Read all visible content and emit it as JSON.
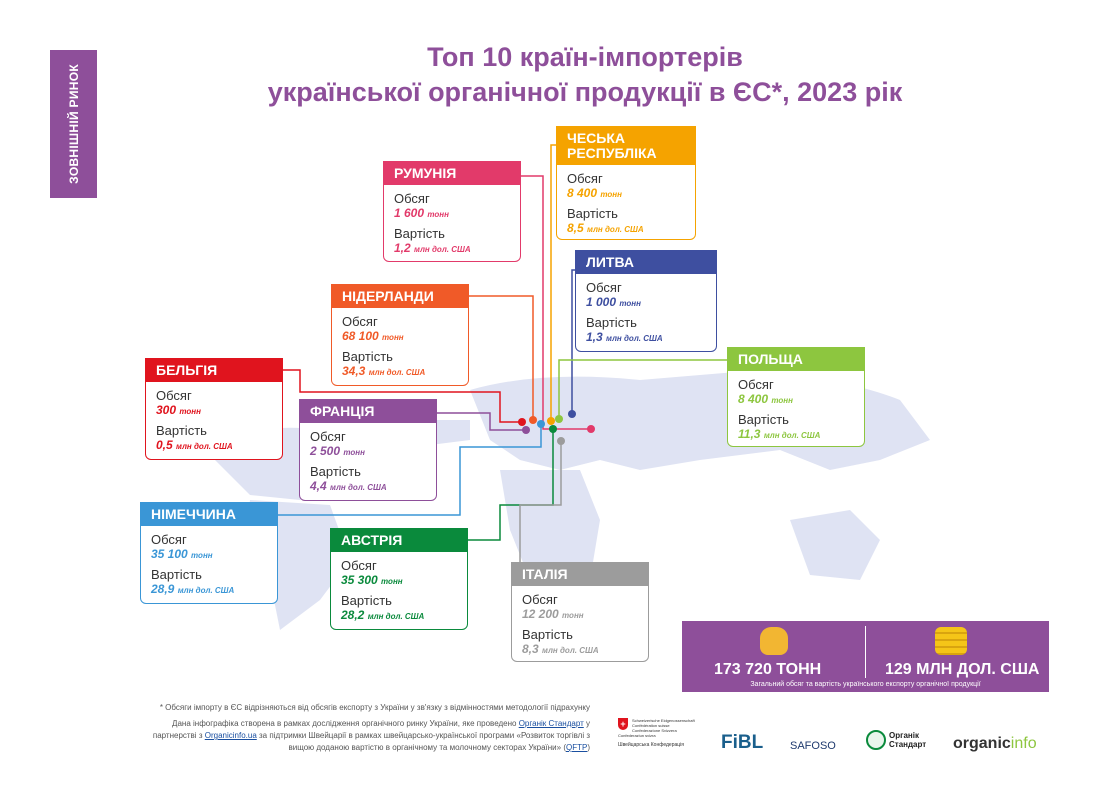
{
  "side_label": "ЗОВНІШНІЙ РИНОК",
  "title_line1": "Топ 10 країн-імпортерів",
  "title_line2": "української органічної продукції в ЄС*, 2023 рік",
  "labels": {
    "volume": "Обсяг",
    "value": "Вартість"
  },
  "countries": [
    {
      "name": "РУМУНІЯ",
      "volume": "1 600",
      "volume_unit": "тонн",
      "value": "1,2",
      "value_unit": "млн дол. США",
      "color": "#e23a6a"
    },
    {
      "name": "ЧЕСЬКА РЕСПУБЛІКА",
      "volume": "8 400",
      "volume_unit": "тонн",
      "value": "8,5",
      "value_unit": "млн дол. США",
      "color": "#f5a300"
    },
    {
      "name": "ЛИТВА",
      "volume": "1 000",
      "volume_unit": "тонн",
      "value": "1,3",
      "value_unit": "млн дол. США",
      "color": "#3e4fa0"
    },
    {
      "name": "НІДЕРЛАНДИ",
      "volume": "68 100",
      "volume_unit": "тонн",
      "value": "34,3",
      "value_unit": "млн дол. США",
      "color": "#f05a28"
    },
    {
      "name": "ПОЛЬЩА",
      "volume": "8 400",
      "volume_unit": "тонн",
      "value": "11,3",
      "value_unit": "млн дол. США",
      "color": "#8dc63f"
    },
    {
      "name": "БЕЛЬГІЯ",
      "volume": "300",
      "volume_unit": "тонн",
      "value": "0,5",
      "value_unit": "млн дол. США",
      "color": "#e0141e"
    },
    {
      "name": "ФРАНЦІЯ",
      "volume": "2 500",
      "volume_unit": "тонн",
      "value": "4,4",
      "value_unit": "млн дол. США",
      "color": "#8e4f9a"
    },
    {
      "name": "НІМЕЧЧИНА",
      "volume": "35 100",
      "volume_unit": "тонн",
      "value": "28,9",
      "value_unit": "млн дол. США",
      "color": "#3a96d6"
    },
    {
      "name": "АВСТРІЯ",
      "volume": "35 300",
      "volume_unit": "тонн",
      "value": "28,2",
      "value_unit": "млн дол. США",
      "color": "#0a8a3c"
    },
    {
      "name": "ІТАЛІЯ",
      "volume": "12 200",
      "volume_unit": "тонн",
      "value": "8,3",
      "value_unit": "млн дол. США",
      "color": "#9c9c9c"
    }
  ],
  "totals": {
    "volume": "173 720 ТОНН",
    "value": "129 МЛН ДОЛ. США",
    "caption": "Загальний обсяг та вартість українського експорту органічної продукції"
  },
  "footnote": "* Обсяги імпорту в ЄС відрізняються від обсягів експорту з України у зв'язку з відмінностями методології підрахунку",
  "credits": {
    "p1": "Дана інфографіка створена в рамках дослідження органічного ринку України, яке проведено",
    "link1": "Органік Стандарт",
    "p2": "у партнерстві",
    "p3": "з",
    "link2": "Organicinfo.ua",
    "p4": "за підтримки Швейцарії в рамках швейцарсько-української програми «Розвиток торгівлі з вищою доданою вартістю в органічному та молочному секторах України»",
    "link3": "QFTP"
  },
  "logos": {
    "swiss": "Швейцарська Конфедерація",
    "fibl": "FiBL",
    "safoso": "SAFOSO",
    "organic_standard": "Органік Стандарт",
    "organicinfo_a": "organic",
    "organicinfo_b": "info"
  }
}
